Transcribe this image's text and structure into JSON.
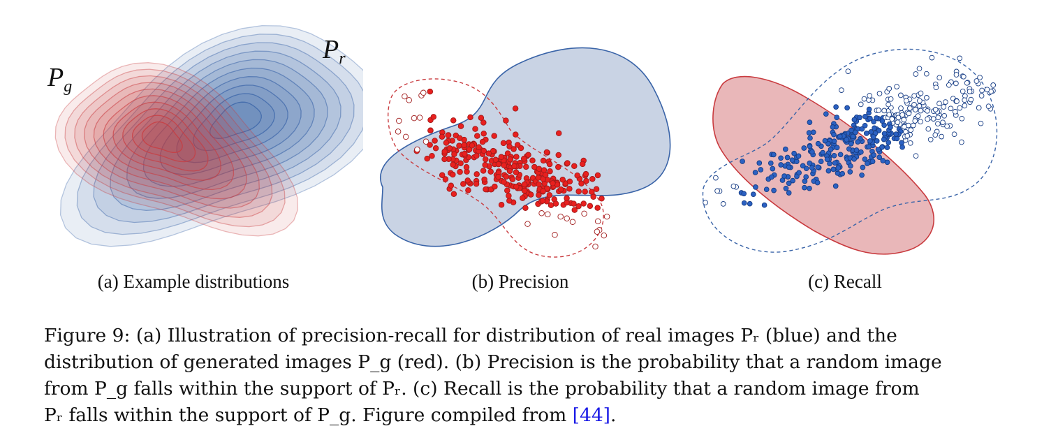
{
  "labels": {
    "pg": "P",
    "pg_sub": "g",
    "pr": "P",
    "pr_sub": "r"
  },
  "subcaptions": {
    "a": "(a) Example distributions",
    "b": "(b) Precision",
    "c": "(c) Recall"
  },
  "caption": {
    "line1": "Figure 9: (a) Illustration of precision-recall for distribution of real images Pᵣ (blue) and the",
    "line2": "distribution of generated images P_g (red). (b) Precision is the probability that a random image",
    "line3": "from P_g falls within the support of Pᵣ. (c) Recall is the probability that a random image from",
    "line4_pre": "Pᵣ falls within the support of P_g. Figure compiled from ",
    "ref": "[44]",
    "line4_post": "."
  },
  "colors": {
    "blue_fill": "#c9d3e4",
    "blue_line": "#3a64a8",
    "red_fill": "#e9b7b9",
    "red_line": "#c93b3f",
    "point_red": "#e8201f",
    "point_blue": "#2b61c2",
    "ref": "#1a1ae6"
  }
}
